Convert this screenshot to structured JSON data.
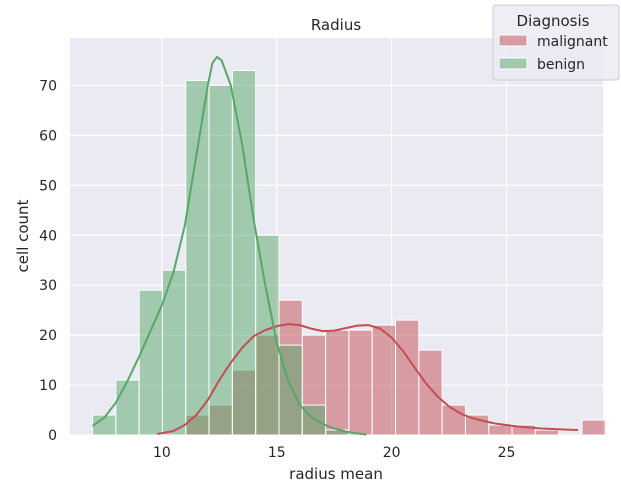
{
  "chart_data": {
    "type": "histogram",
    "title": "Radius",
    "xlabel": "radius mean",
    "ylabel": "cell count",
    "xlim": [
      6.0,
      29.2
    ],
    "ylim": [
      0,
      79.5
    ],
    "xticks": [
      10,
      15,
      20,
      25
    ],
    "yticks": [
      0,
      10,
      20,
      30,
      40,
      50,
      60,
      70
    ],
    "grid": true,
    "legend": {
      "title": "Diagnosis",
      "placement": "top-right"
    },
    "bin_start": 6.981,
    "bin_width": 1.0145,
    "series": [
      {
        "name": "malignant",
        "color": "#c44e52",
        "counts": [
          0,
          0,
          0,
          0,
          4,
          6,
          13,
          20,
          27,
          20,
          21,
          21,
          22,
          23,
          17,
          6,
          4,
          2,
          2,
          1,
          0,
          3
        ],
        "kde": [
          [
            9.8,
            0.2
          ],
          [
            10.5,
            0.8
          ],
          [
            11.0,
            2.0
          ],
          [
            11.5,
            4.0
          ],
          [
            12.0,
            7.0
          ],
          [
            12.5,
            11.0
          ],
          [
            13.0,
            14.5
          ],
          [
            13.5,
            17.5
          ],
          [
            14.0,
            19.8
          ],
          [
            14.5,
            21.0
          ],
          [
            15.0,
            21.8
          ],
          [
            15.5,
            22.2
          ],
          [
            16.0,
            22.0
          ],
          [
            16.5,
            21.3
          ],
          [
            17.0,
            20.8
          ],
          [
            17.5,
            20.9
          ],
          [
            18.0,
            21.4
          ],
          [
            18.5,
            21.9
          ],
          [
            19.0,
            22.0
          ],
          [
            19.5,
            21.3
          ],
          [
            20.0,
            19.5
          ],
          [
            20.5,
            16.8
          ],
          [
            21.0,
            13.5
          ],
          [
            21.5,
            10.3
          ],
          [
            22.0,
            7.7
          ],
          [
            22.5,
            5.7
          ],
          [
            23.0,
            4.3
          ],
          [
            23.5,
            3.4
          ],
          [
            24.0,
            2.8
          ],
          [
            24.5,
            2.3
          ],
          [
            25.0,
            2.0
          ],
          [
            25.5,
            1.7
          ],
          [
            26.0,
            1.5
          ],
          [
            26.5,
            1.3
          ],
          [
            27.0,
            1.2
          ],
          [
            27.5,
            1.1
          ],
          [
            28.11,
            1.0
          ]
        ]
      },
      {
        "name": "benign",
        "color": "#55a868",
        "counts": [
          4,
          11,
          29,
          33,
          71,
          70,
          73,
          40,
          18,
          6,
          1,
          0,
          0,
          0,
          0,
          0,
          0,
          0,
          0,
          0,
          0,
          0
        ],
        "kde": [
          [
            6.98,
            1.8
          ],
          [
            7.5,
            3.5
          ],
          [
            8.0,
            6.5
          ],
          [
            8.5,
            10.8
          ],
          [
            9.0,
            15.6
          ],
          [
            9.5,
            20.8
          ],
          [
            10.0,
            26.0
          ],
          [
            10.5,
            32.5
          ],
          [
            11.0,
            42.0
          ],
          [
            11.5,
            56.0
          ],
          [
            12.0,
            70.0
          ],
          [
            12.2,
            74.5
          ],
          [
            12.4,
            75.7
          ],
          [
            12.6,
            75.0
          ],
          [
            13.0,
            70.0
          ],
          [
            13.5,
            58.0
          ],
          [
            14.0,
            43.0
          ],
          [
            14.5,
            30.0
          ],
          [
            15.0,
            18.5
          ],
          [
            15.5,
            10.8
          ],
          [
            16.0,
            6.0
          ],
          [
            16.5,
            3.6
          ],
          [
            17.0,
            2.2
          ],
          [
            17.5,
            1.3
          ],
          [
            18.0,
            0.7
          ],
          [
            18.5,
            0.3
          ],
          [
            18.9,
            0.1
          ]
        ]
      }
    ]
  }
}
